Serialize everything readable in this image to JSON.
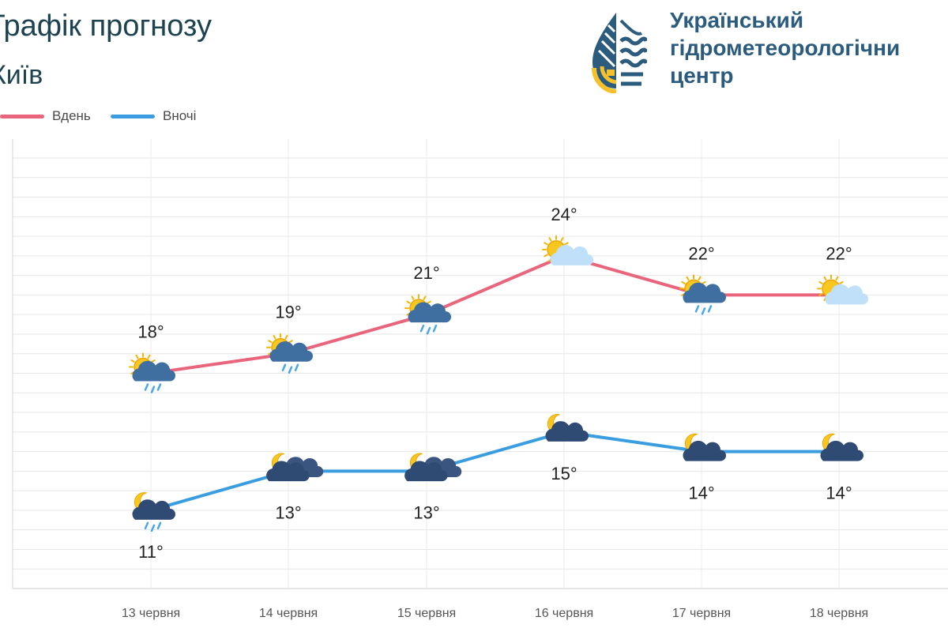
{
  "header": {
    "title": "Графік прогнозу",
    "subtitle": "Київ"
  },
  "org": {
    "line1": "Український",
    "line2": "гідрометеорологічни",
    "line3": "центр"
  },
  "chart_data": {
    "type": "line",
    "categories": [
      "13 червня",
      "14 червня",
      "15 червня",
      "16 червня",
      "17 червня",
      "18 червня"
    ],
    "series": [
      {
        "name": "Вдень",
        "color": "#e8657c",
        "values": [
          18,
          19,
          21,
          24,
          22,
          22
        ],
        "icons": [
          "sun-cloud-rain-icon",
          "sun-cloud-rain-icon",
          "sun-cloud-rain-icon",
          "sun-cloud-icon",
          "sun-cloud-rain-icon",
          "sun-cloud-icon"
        ]
      },
      {
        "name": "Вночі",
        "color": "#3a9de0",
        "values": [
          11,
          13,
          13,
          15,
          14,
          14
        ],
        "icons": [
          "moon-cloud-rain-icon",
          "moon-clouds-icon",
          "moon-clouds-icon",
          "moon-cloud-icon",
          "moon-cloud-icon",
          "moon-cloud-icon"
        ]
      }
    ],
    "value_suffix": "°",
    "ylim": [
      7,
      29
    ],
    "grid": true,
    "legend": "top-left"
  }
}
